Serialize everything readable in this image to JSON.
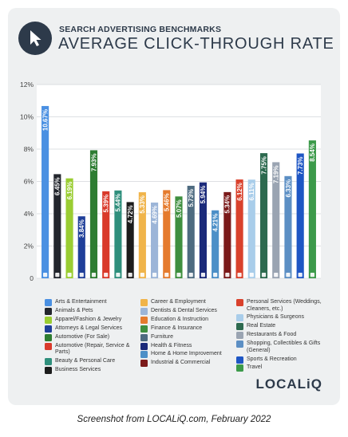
{
  "header": {
    "supertitle": "SEARCH ADVERTISING BENCHMARKS",
    "title": "AVERAGE CLICK-THROUGH RATE"
  },
  "brand": "LOCALiQ",
  "caption": "Screenshot from LOCALiQ.com, February 2022",
  "chart_data": {
    "type": "bar",
    "title": "AVERAGE CLICK-THROUGH RATE",
    "ylim": [
      0,
      12
    ],
    "y_ticks": [
      "0",
      "2%",
      "4%",
      "6%",
      "8%",
      "10%",
      "12%"
    ],
    "grid": true,
    "legend_position": "bottom",
    "categories": [
      "Arts & Entertainment",
      "Animals & Pets",
      "Apparel/Fashion & Jewelry",
      "Attorneys & Legal Services",
      "Automotive (For Sale)",
      "Automotive (Repair, Service & Parts)",
      "Beauty & Personal Care",
      "Business Services",
      "Career & Employment",
      "Dentists & Dental Services",
      "Education & Instruction",
      "Finance & Insurance",
      "Furniture",
      "Health & Fitness",
      "Home & Home Improvement",
      "Industrial & Commercial",
      "Personal Services (Weddings, Cleaners, etc.)",
      "Physicians & Surgeons",
      "Real Estate",
      "Restaurants & Food",
      "Shopping, Collectibles & Gifts (General)",
      "Sports & Recreation",
      "Travel"
    ],
    "values": [
      10.67,
      6.45,
      6.19,
      3.84,
      7.93,
      5.39,
      5.44,
      4.72,
      5.33,
      4.69,
      5.46,
      5.07,
      5.73,
      5.94,
      4.21,
      5.34,
      6.12,
      6.11,
      7.75,
      7.19,
      6.33,
      7.73,
      8.54
    ],
    "value_labels": [
      "10.67%",
      "6.45%",
      "6.19%",
      "3.84%",
      "7.93%",
      "5.39%",
      "5.44%",
      "4.72%",
      "5.33%",
      "4.69%",
      "5.46%",
      "5.07%",
      "5.73%",
      "5.94%",
      "4.21%",
      "5.34%",
      "6.12%",
      "6.11%",
      "7.75%",
      "7.19%",
      "6.33%",
      "7.73%",
      "8.54%"
    ],
    "colors": [
      "#4a90e2",
      "#23262d",
      "#9acd32",
      "#1f3f99",
      "#2e7d32",
      "#d93a2b",
      "#2f8f7c",
      "#1c1c1c",
      "#f0b44a",
      "#9cb5d8",
      "#e57b2e",
      "#3f8f3f",
      "#4e6b80",
      "#1b2a7a",
      "#4c8fc7",
      "#7b1a1a",
      "#d9412c",
      "#a9cdea",
      "#2d6a4f",
      "#9aa4b2",
      "#5c8fc4",
      "#1e56c4",
      "#3c9a4a"
    ],
    "icons": [
      "ticket-icon",
      "paw-icon",
      "hanger-icon",
      "gavel-icon",
      "car-icon",
      "wrench-icon",
      "brush-icon",
      "briefcase-icon",
      "clipboard-icon",
      "tooth-icon",
      "graduation-icon",
      "coin-icon",
      "chair-icon",
      "heart-icon",
      "home-icon",
      "factory-icon",
      "scissors-icon",
      "medical-cross-icon",
      "building-icon",
      "fork-knife-icon",
      "gift-icon",
      "ball-icon",
      "plane-icon"
    ]
  }
}
